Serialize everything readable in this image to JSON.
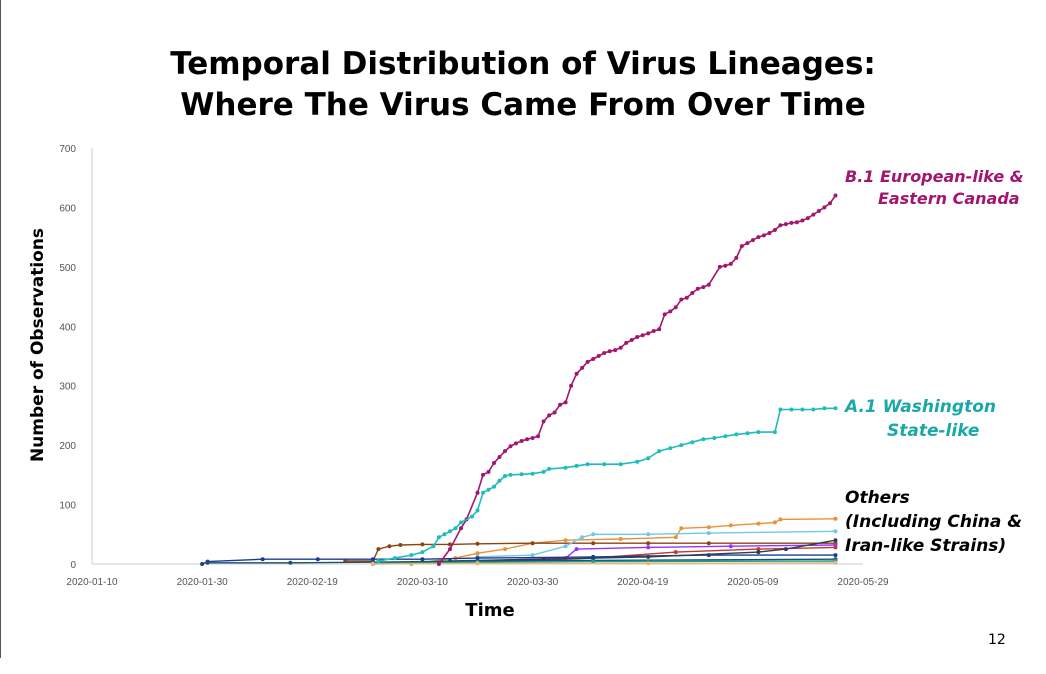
{
  "slide": {
    "title_line1": "Temporal Distribution of Virus Lineages:",
    "title_line2": "Where The Virus Came From Over Time",
    "page_number": "12"
  },
  "annotations": {
    "b1_line1": "B.1  European-like &",
    "b1_line2": "Eastern Canada",
    "a1_line1": "A.1  Washington",
    "a1_line2": "State-like",
    "others_line1": "Others",
    "others_line2": "(Including China &",
    "others_line3": "Iran-like Strains)"
  },
  "colors": {
    "b1": "#a3166f",
    "a1": "#1fbcbc",
    "axis": "#cccccc",
    "tick_text": "#555555"
  },
  "chart_data": {
    "type": "line",
    "title": "Temporal Distribution of Virus Lineages: Where The Virus Came From Over Time",
    "xlabel": "Time",
    "ylabel": "Number of Observations",
    "ylim": [
      0,
      700
    ],
    "yticks": [
      0,
      100,
      200,
      300,
      400,
      500,
      600,
      700
    ],
    "xlim": [
      "2020-01-10",
      "2020-05-29"
    ],
    "xticks": [
      "2020-01-10",
      "2020-01-30",
      "2020-02-19",
      "2020-03-10",
      "2020-03-30",
      "2020-04-19",
      "2020-05-09",
      "2020-05-29"
    ],
    "grid": false,
    "legend": "none",
    "series": [
      {
        "name": "B.1  European-like & Eastern Canada",
        "color": "#a3166f",
        "points": [
          [
            "2020-03-13",
            0
          ],
          [
            "2020-03-15",
            25
          ],
          [
            "2020-03-17",
            60
          ],
          [
            "2020-03-18",
            75
          ],
          [
            "2020-03-20",
            120
          ],
          [
            "2020-03-21",
            150
          ],
          [
            "2020-03-22",
            155
          ],
          [
            "2020-03-23",
            170
          ],
          [
            "2020-03-24",
            180
          ],
          [
            "2020-03-25",
            190
          ],
          [
            "2020-03-26",
            198
          ],
          [
            "2020-03-27",
            203
          ],
          [
            "2020-03-28",
            207
          ],
          [
            "2020-03-29",
            210
          ],
          [
            "2020-03-30",
            212
          ],
          [
            "2020-03-31",
            215
          ],
          [
            "2020-04-01",
            240
          ],
          [
            "2020-04-02",
            250
          ],
          [
            "2020-04-03",
            255
          ],
          [
            "2020-04-04",
            268
          ],
          [
            "2020-04-05",
            272
          ],
          [
            "2020-04-06",
            300
          ],
          [
            "2020-04-07",
            320
          ],
          [
            "2020-04-08",
            330
          ],
          [
            "2020-04-09",
            340
          ],
          [
            "2020-04-10",
            345
          ],
          [
            "2020-04-11",
            350
          ],
          [
            "2020-04-12",
            355
          ],
          [
            "2020-04-13",
            358
          ],
          [
            "2020-04-14",
            360
          ],
          [
            "2020-04-15",
            364
          ],
          [
            "2020-04-16",
            372
          ],
          [
            "2020-04-17",
            377
          ],
          [
            "2020-04-18",
            382
          ],
          [
            "2020-04-19",
            385
          ],
          [
            "2020-04-20",
            388
          ],
          [
            "2020-04-21",
            392
          ],
          [
            "2020-04-22",
            395
          ],
          [
            "2020-04-23",
            420
          ],
          [
            "2020-04-24",
            425
          ],
          [
            "2020-04-25",
            432
          ],
          [
            "2020-04-26",
            445
          ],
          [
            "2020-04-27",
            448
          ],
          [
            "2020-04-28",
            456
          ],
          [
            "2020-04-29",
            463
          ],
          [
            "2020-04-30",
            466
          ],
          [
            "2020-05-01",
            470
          ],
          [
            "2020-05-03",
            500
          ],
          [
            "2020-05-04",
            502
          ],
          [
            "2020-05-05",
            505
          ],
          [
            "2020-05-06",
            515
          ],
          [
            "2020-05-07",
            535
          ],
          [
            "2020-05-08",
            540
          ],
          [
            "2020-05-09",
            545
          ],
          [
            "2020-05-10",
            550
          ],
          [
            "2020-05-11",
            553
          ],
          [
            "2020-05-12",
            557
          ],
          [
            "2020-05-13",
            562
          ],
          [
            "2020-05-14",
            570
          ],
          [
            "2020-05-15",
            572
          ],
          [
            "2020-05-16",
            574
          ],
          [
            "2020-05-17",
            575
          ],
          [
            "2020-05-18",
            578
          ],
          [
            "2020-05-19",
            582
          ],
          [
            "2020-05-20",
            588
          ],
          [
            "2020-05-21",
            594
          ],
          [
            "2020-05-22",
            600
          ],
          [
            "2020-05-23",
            607
          ],
          [
            "2020-05-24",
            620
          ]
        ]
      },
      {
        "name": "A.1  Washington State-like",
        "color": "#1fbcbc",
        "points": [
          [
            "2020-03-02",
            5
          ],
          [
            "2020-03-05",
            10
          ],
          [
            "2020-03-08",
            15
          ],
          [
            "2020-03-10",
            20
          ],
          [
            "2020-03-12",
            30
          ],
          [
            "2020-03-13",
            45
          ],
          [
            "2020-03-14",
            50
          ],
          [
            "2020-03-15",
            55
          ],
          [
            "2020-03-16",
            60
          ],
          [
            "2020-03-17",
            70
          ],
          [
            "2020-03-19",
            80
          ],
          [
            "2020-03-20",
            90
          ],
          [
            "2020-03-21",
            120
          ],
          [
            "2020-03-22",
            125
          ],
          [
            "2020-03-23",
            130
          ],
          [
            "2020-03-24",
            140
          ],
          [
            "2020-03-25",
            148
          ],
          [
            "2020-03-26",
            150
          ],
          [
            "2020-03-28",
            151
          ],
          [
            "2020-03-30",
            152
          ],
          [
            "2020-04-01",
            155
          ],
          [
            "2020-04-02",
            160
          ],
          [
            "2020-04-05",
            162
          ],
          [
            "2020-04-07",
            165
          ],
          [
            "2020-04-09",
            168
          ],
          [
            "2020-04-12",
            168
          ],
          [
            "2020-04-15",
            168
          ],
          [
            "2020-04-18",
            172
          ],
          [
            "2020-04-20",
            178
          ],
          [
            "2020-04-22",
            190
          ],
          [
            "2020-04-24",
            195
          ],
          [
            "2020-04-26",
            200
          ],
          [
            "2020-04-28",
            205
          ],
          [
            "2020-04-30",
            210
          ],
          [
            "2020-05-02",
            212
          ],
          [
            "2020-05-04",
            215
          ],
          [
            "2020-05-06",
            218
          ],
          [
            "2020-05-08",
            220
          ],
          [
            "2020-05-10",
            222
          ],
          [
            "2020-05-13",
            222
          ],
          [
            "2020-05-14",
            260
          ],
          [
            "2020-05-16",
            260
          ],
          [
            "2020-05-18",
            260
          ],
          [
            "2020-05-20",
            260
          ],
          [
            "2020-05-22",
            262
          ],
          [
            "2020-05-24",
            262
          ]
        ]
      },
      {
        "color": "#e8913a",
        "points": [
          [
            "2020-03-08",
            0
          ],
          [
            "2020-03-16",
            10
          ],
          [
            "2020-03-20",
            18
          ],
          [
            "2020-03-25",
            25
          ],
          [
            "2020-03-30",
            35
          ],
          [
            "2020-04-05",
            40
          ],
          [
            "2020-04-15",
            42
          ],
          [
            "2020-04-25",
            45
          ],
          [
            "2020-04-26",
            60
          ],
          [
            "2020-05-01",
            62
          ],
          [
            "2020-05-05",
            65
          ],
          [
            "2020-05-10",
            68
          ],
          [
            "2020-05-13",
            70
          ],
          [
            "2020-05-14",
            75
          ],
          [
            "2020-05-24",
            76
          ]
        ]
      },
      {
        "color": "#8b4513",
        "points": [
          [
            "2020-02-25",
            5
          ],
          [
            "2020-03-01",
            5
          ],
          [
            "2020-03-02",
            25
          ],
          [
            "2020-03-04",
            30
          ],
          [
            "2020-03-06",
            32
          ],
          [
            "2020-03-10",
            33
          ],
          [
            "2020-03-15",
            33
          ],
          [
            "2020-03-20",
            34
          ],
          [
            "2020-03-30",
            35
          ],
          [
            "2020-04-10",
            35
          ],
          [
            "2020-04-20",
            35
          ],
          [
            "2020-05-01",
            35
          ],
          [
            "2020-05-24",
            35
          ]
        ]
      },
      {
        "color": "#6fc8e8",
        "points": [
          [
            "2020-03-20",
            12
          ],
          [
            "2020-03-30",
            15
          ],
          [
            "2020-04-05",
            30
          ],
          [
            "2020-04-08",
            45
          ],
          [
            "2020-04-10",
            50
          ],
          [
            "2020-04-20",
            50
          ],
          [
            "2020-05-01",
            52
          ],
          [
            "2020-05-24",
            55
          ]
        ]
      },
      {
        "color": "#9b30ff",
        "points": [
          [
            "2020-03-20",
            5
          ],
          [
            "2020-04-05",
            10
          ],
          [
            "2020-04-07",
            25
          ],
          [
            "2020-04-20",
            28
          ],
          [
            "2020-05-05",
            30
          ],
          [
            "2020-05-24",
            32
          ]
        ]
      },
      {
        "color": "#c0392b",
        "points": [
          [
            "2020-03-20",
            2
          ],
          [
            "2020-04-10",
            10
          ],
          [
            "2020-04-25",
            20
          ],
          [
            "2020-05-10",
            25
          ],
          [
            "2020-05-24",
            28
          ]
        ]
      },
      {
        "color": "#1f3a93",
        "points": [
          [
            "2020-01-30",
            0
          ],
          [
            "2020-01-31",
            4
          ],
          [
            "2020-02-10",
            8
          ],
          [
            "2020-02-20",
            8
          ],
          [
            "2020-03-01",
            8
          ],
          [
            "2020-03-10",
            8
          ],
          [
            "2020-03-20",
            10
          ],
          [
            "2020-04-10",
            12
          ],
          [
            "2020-05-01",
            15
          ],
          [
            "2020-05-24",
            15
          ]
        ]
      },
      {
        "color": "#2c3e50",
        "points": [
          [
            "2020-03-01",
            0
          ],
          [
            "2020-03-15",
            5
          ],
          [
            "2020-04-01",
            8
          ],
          [
            "2020-04-20",
            12
          ],
          [
            "2020-05-10",
            20
          ],
          [
            "2020-05-15",
            25
          ],
          [
            "2020-05-24",
            40
          ]
        ]
      },
      {
        "color": "#1a5276",
        "points": [
          [
            "2020-01-31",
            2
          ],
          [
            "2020-02-15",
            2
          ],
          [
            "2020-03-01",
            3
          ],
          [
            "2020-03-20",
            5
          ],
          [
            "2020-04-10",
            6
          ],
          [
            "2020-05-24",
            8
          ]
        ]
      },
      {
        "color": "#17a589",
        "points": [
          [
            "2020-03-01",
            1
          ],
          [
            "2020-03-20",
            3
          ],
          [
            "2020-04-10",
            4
          ],
          [
            "2020-05-24",
            5
          ]
        ]
      },
      {
        "color": "#f0b27a",
        "points": [
          [
            "2020-03-01",
            0
          ],
          [
            "2020-03-20",
            1
          ],
          [
            "2020-04-20",
            1
          ],
          [
            "2020-05-24",
            2
          ]
        ]
      }
    ]
  }
}
